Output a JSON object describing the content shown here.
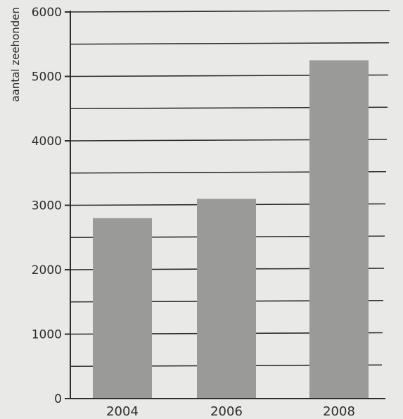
{
  "chart_data": {
    "type": "bar",
    "categories": [
      "2004",
      "2006",
      "2008"
    ],
    "values": [
      2800,
      3100,
      5250
    ],
    "ylabel": "aantal zeehonden",
    "xlabel": "",
    "ylim": [
      0,
      6000
    ],
    "y_ticks": [
      "0",
      "1000",
      "2000",
      "3000",
      "4000",
      "5000",
      "6000"
    ],
    "grid_step": 500,
    "grid": true,
    "bar_color": "#9a9a98",
    "background": "#e9e9e7"
  }
}
